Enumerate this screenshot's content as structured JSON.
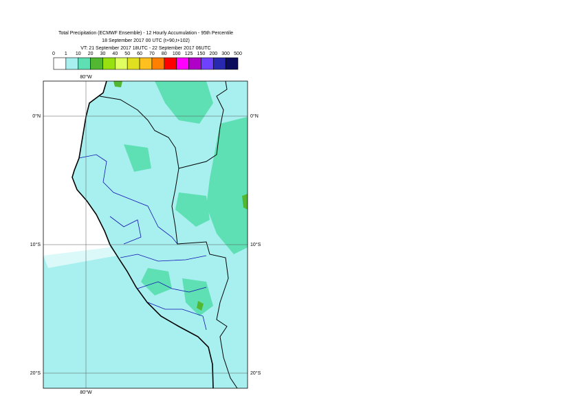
{
  "header": {
    "title": "Total Precipitation (ECMWF Ensemble) - 12 Hourly Accumulation - 95th Percentile",
    "base_time": "18 September 2017 00 UTC (t+90,t+102)",
    "valid_time": "VT: 21 September 2017 18UTC - 22 September 2017 06UTC"
  },
  "legend": {
    "labels": [
      "0",
      "1",
      "10",
      "20",
      "30",
      "40",
      "50",
      "60",
      "70",
      "80",
      "100",
      "125",
      "150",
      "200",
      "300",
      "500"
    ],
    "colors": [
      "#ffffff",
      "#a8f0f0",
      "#5ee0b4",
      "#52b832",
      "#98e010",
      "#e0ff60",
      "#e0e020",
      "#ffc020",
      "#ff8000",
      "#ff0000",
      "#ff00ff",
      "#b000c8",
      "#7040ff",
      "#2828b0",
      "#0c0c5c"
    ]
  },
  "map": {
    "lon_labels": [
      "80°W",
      "80°W"
    ],
    "lat_labels_left": [
      "0°N",
      "10°S",
      "20°S"
    ],
    "lat_labels_right": [
      "0°N",
      "10°S",
      "20°S"
    ]
  }
}
